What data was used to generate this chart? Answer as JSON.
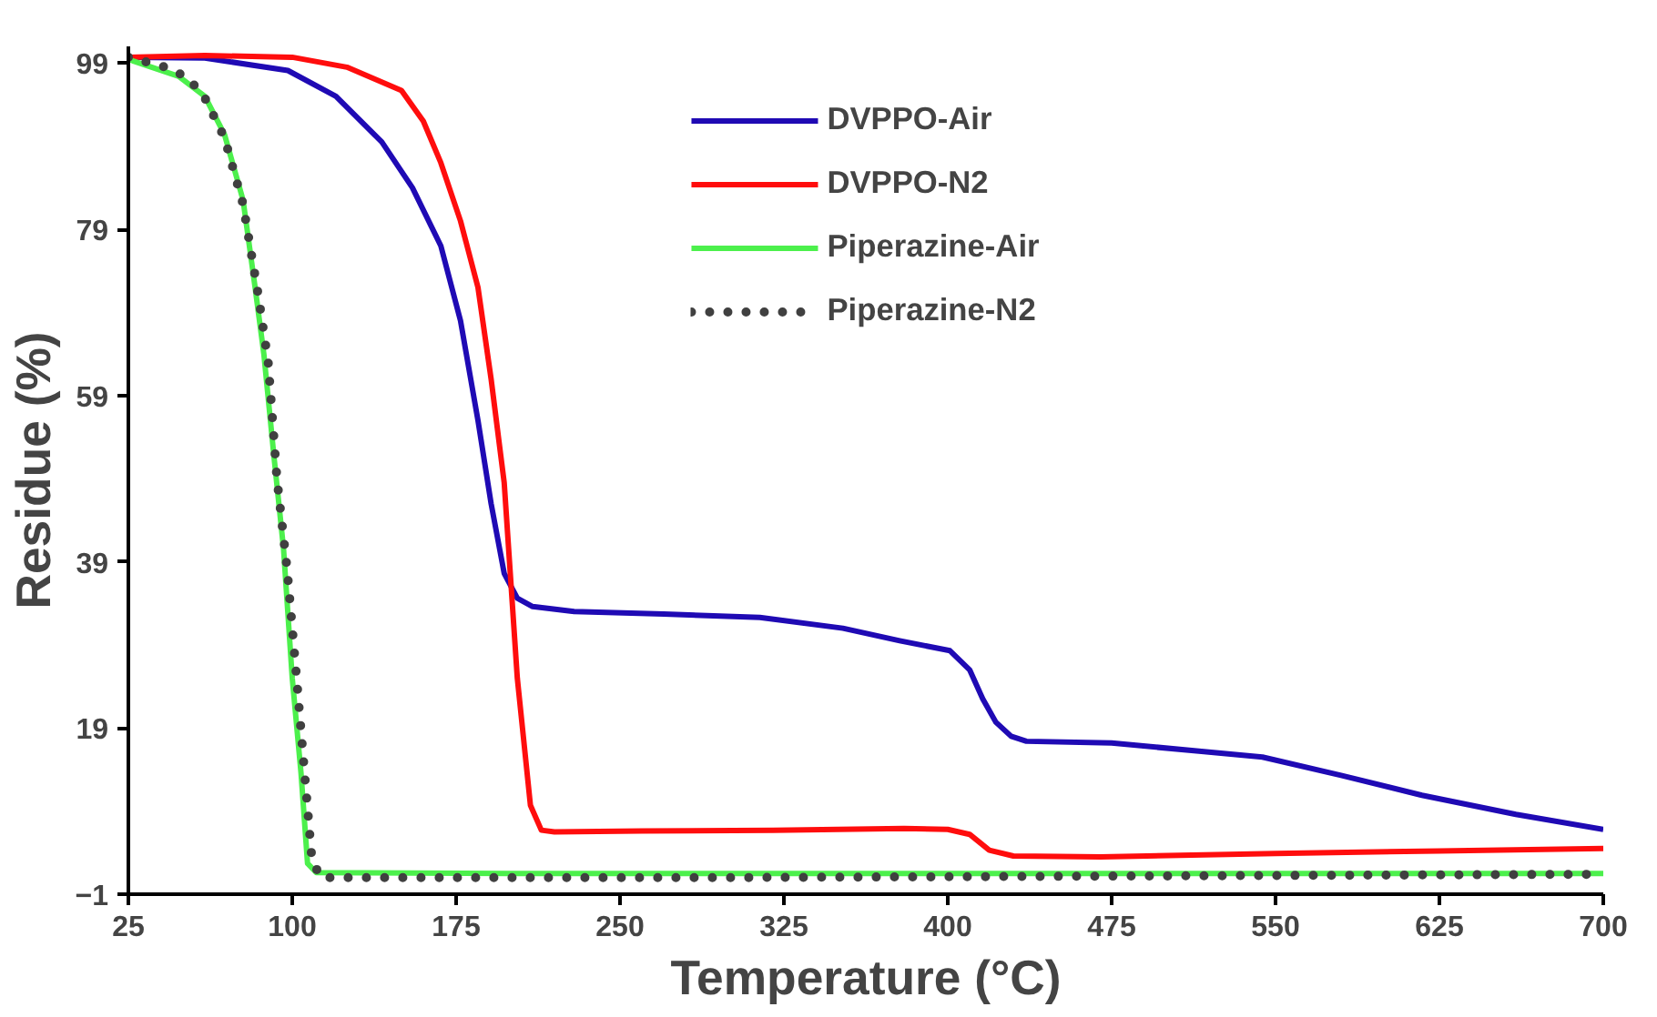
{
  "chart_data": {
    "type": "line",
    "xlabel": "Temperature (°C)",
    "ylabel": "Residue (%)",
    "xlim": [
      25,
      700
    ],
    "ylim": [
      -1,
      101
    ],
    "xticks": [
      25,
      100,
      175,
      250,
      325,
      400,
      475,
      550,
      625,
      700
    ],
    "yticks": [
      -1,
      19,
      39,
      59,
      79,
      99
    ],
    "grid": false,
    "legend": "top",
    "marker": "none",
    "line_style": "solid",
    "series": [
      {
        "name": "DVPPO-Air",
        "color": "#1f0ab4",
        "x": [
          25,
          60,
          98,
          120,
          141,
          155,
          168,
          177,
          185,
          191,
          197,
          203,
          210,
          229,
          270,
          314,
          352,
          378,
          401,
          410,
          416,
          422,
          429,
          436,
          475,
          515,
          544,
          580,
          617,
          660,
          700
        ],
        "values": [
          99.7,
          99.6,
          98.1,
          95,
          89.5,
          84,
          77,
          68,
          56,
          46,
          37.6,
          34.6,
          33.6,
          33,
          32.7,
          32.3,
          31,
          29.5,
          28.3,
          26,
          22.5,
          19.7,
          18,
          17.4,
          17.2,
          16.2,
          15.5,
          13.3,
          10.9,
          8.6,
          6.8
        ]
      },
      {
        "name": "DVPPO-N2",
        "color": "#ff0d0d",
        "x": [
          25,
          60,
          100,
          125,
          150,
          160,
          168,
          177,
          185,
          191,
          197,
          203,
          209,
          214,
          220,
          260,
          320,
          380,
          400,
          410,
          419,
          430,
          470,
          550,
          625,
          700
        ],
        "values": [
          99.7,
          99.9,
          99.7,
          98.5,
          95.7,
          92,
          87,
          80,
          72,
          61,
          48.5,
          25,
          9.7,
          6.7,
          6.5,
          6.6,
          6.7,
          6.9,
          6.8,
          6.2,
          4.3,
          3.6,
          3.5,
          3.9,
          4.2,
          4.5
        ]
      },
      {
        "name": "Piperazine-Air",
        "color": "#4cf04c",
        "x": [
          25,
          27.6,
          48,
          60,
          69,
          77.5,
          83,
          87,
          91.5,
          96,
          100,
          104,
          107,
          111,
          200,
          300,
          400,
          500,
          600,
          700
        ],
        "values": [
          99.5,
          99.2,
          97.4,
          95,
          90.4,
          82.5,
          72,
          64,
          52,
          40.6,
          25,
          13.6,
          2.7,
          1.6,
          1.5,
          1.5,
          1.5,
          1.5,
          1.5,
          1.5
        ]
      },
      {
        "name": "Piperazine-N2",
        "color": "#404040",
        "line_style": "dotted",
        "x": [
          25,
          35,
          44.7,
          53,
          60,
          69,
          77.5,
          84.5,
          89,
          93,
          97.7,
          102,
          105.5,
          109,
          113,
          200,
          300,
          400,
          500,
          600,
          700
        ],
        "values": [
          99.7,
          99,
          98.3,
          97,
          94.8,
          90,
          82,
          71,
          63,
          49,
          38,
          25,
          14,
          3.2,
          1,
          1,
          1,
          1.1,
          1.2,
          1.3,
          1.4
        ]
      }
    ]
  }
}
